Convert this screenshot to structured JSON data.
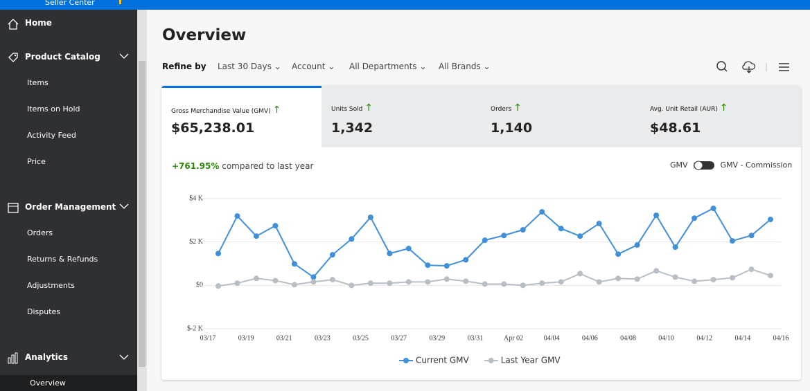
{
  "header": {
    "brand": "Seller Center"
  },
  "sidebar": {
    "home": "Home",
    "catalog": "Product Catalog",
    "catalog_items": [
      "Items",
      "Items on Hold",
      "Activity Feed",
      "Price"
    ],
    "orders": "Order Management",
    "orders_items": [
      "Orders",
      "Returns & Refunds",
      "Adjustments",
      "Disputes"
    ],
    "analytics": "Analytics",
    "analytics_items": [
      "Overview"
    ]
  },
  "page": {
    "title": "Overview",
    "refine_label": "Refine by",
    "filters": [
      "Last 30 Days",
      "Account",
      "All Departments",
      "All Brands"
    ]
  },
  "metrics": [
    {
      "label": "Gross Merchandise Value (GMV)",
      "value": "$65,238.01"
    },
    {
      "label": "Units Sold",
      "value": "1,342"
    },
    {
      "label": "Orders",
      "value": "1,140"
    },
    {
      "label": "Avg. Unit Retail (AUR)",
      "value": "$48.61"
    }
  ],
  "comparison": {
    "change": "+761.95%",
    "text": "compared to last year"
  },
  "toggle": {
    "left": "GMV",
    "right": "GMV - Commission"
  },
  "chart_data": {
    "type": "line",
    "x_labels": [
      "03/17",
      "03/19",
      "03/21",
      "03/23",
      "03/25",
      "03/27",
      "03/29",
      "03/31",
      "Apr 02",
      "04/04",
      "04/06",
      "04/08",
      "04/10",
      "04/12",
      "04/14",
      "04/16"
    ],
    "ylim": [
      -2000,
      4000
    ],
    "yticks": [
      {
        "value": -2000,
        "label": "$-2 K"
      },
      {
        "value": 0,
        "label": "$0"
      },
      {
        "value": 2000,
        "label": "$2 K"
      },
      {
        "value": 4000,
        "label": "$4 K"
      }
    ],
    "grid": true,
    "series": [
      {
        "name": "Current GMV",
        "color": "#3f8fdb",
        "values": [
          1470,
          3200,
          2270,
          2750,
          990,
          380,
          1410,
          2140,
          3140,
          1470,
          1700,
          930,
          900,
          1180,
          2080,
          2300,
          2560,
          3390,
          2620,
          2270,
          2850,
          1440,
          1860,
          3230,
          1760,
          3100,
          3550,
          2050,
          2300,
          3040
        ]
      },
      {
        "name": "Last Year GMV",
        "color": "#b8bec6",
        "values": [
          -30,
          100,
          320,
          220,
          30,
          160,
          260,
          0,
          100,
          100,
          160,
          160,
          290,
          190,
          60,
          60,
          0,
          100,
          160,
          540,
          160,
          320,
          290,
          670,
          380,
          190,
          260,
          350,
          740,
          450
        ]
      }
    ]
  }
}
